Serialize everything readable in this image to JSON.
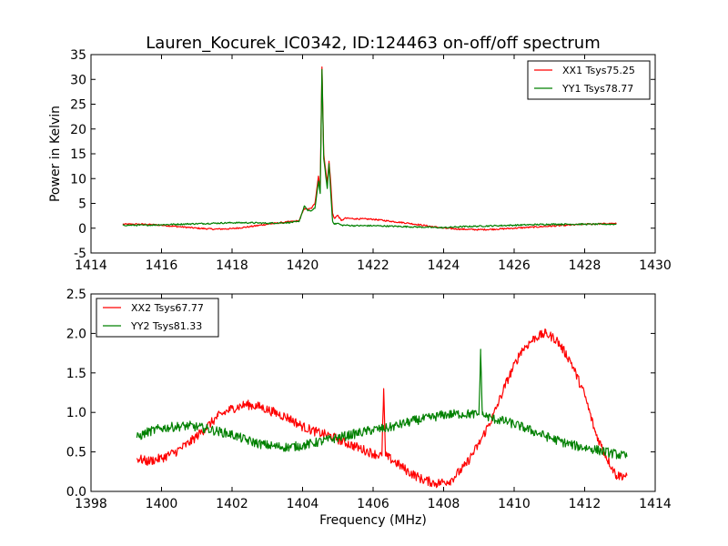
{
  "figure": {
    "title": "Lauren_Kocurek_IC0342, ID:124463 on-off/off spectrum"
  },
  "chart_data": [
    {
      "type": "line",
      "title": "Lauren_Kocurek_IC0342, ID:124463 on-off/off spectrum",
      "xlabel": "",
      "ylabel": "Power in Kelvin",
      "xlim": [
        1414,
        1430
      ],
      "ylim": [
        -5,
        35
      ],
      "xticks": [
        1414,
        1416,
        1418,
        1420,
        1422,
        1424,
        1426,
        1428,
        1430
      ],
      "yticks": [
        -5,
        0,
        5,
        10,
        15,
        20,
        25,
        30,
        35
      ],
      "grid": false,
      "legend_position": "top-right",
      "series": [
        {
          "name": "XX1 Tsys75.25",
          "color": "#ff0000",
          "x": [
            1414.9,
            1415.5,
            1416.0,
            1416.5,
            1417.0,
            1417.5,
            1418.0,
            1418.5,
            1419.0,
            1419.5,
            1419.9,
            1420.05,
            1420.15,
            1420.25,
            1420.35,
            1420.45,
            1420.5,
            1420.55,
            1420.6,
            1420.65,
            1420.7,
            1420.75,
            1420.8,
            1420.85,
            1420.9,
            1421.0,
            1421.1,
            1421.2,
            1421.5,
            1422.0,
            1422.5,
            1423.0,
            1423.5,
            1424.0,
            1424.5,
            1425.0,
            1425.5,
            1426.0,
            1426.5,
            1427.0,
            1427.5,
            1428.0,
            1428.5,
            1428.9
          ],
          "y": [
            0.8,
            0.8,
            0.6,
            0.3,
            0.0,
            -0.2,
            -0.1,
            0.3,
            0.8,
            1.2,
            1.5,
            4.0,
            3.8,
            4.0,
            5.0,
            10.5,
            8.0,
            32.5,
            15.0,
            12.0,
            9.0,
            13.5,
            9.0,
            3.0,
            2.0,
            2.6,
            1.5,
            2.0,
            1.9,
            1.8,
            1.4,
            1.0,
            0.5,
            0.0,
            -0.2,
            -0.3,
            -0.2,
            0.0,
            0.2,
            0.4,
            0.6,
            0.8,
            0.9,
            0.9
          ]
        },
        {
          "name": "YY1 Tsys78.77",
          "color": "#008000",
          "x": [
            1414.9,
            1415.5,
            1416.0,
            1416.5,
            1417.0,
            1417.5,
            1418.0,
            1418.5,
            1419.0,
            1419.5,
            1419.9,
            1420.05,
            1420.15,
            1420.25,
            1420.35,
            1420.45,
            1420.5,
            1420.55,
            1420.6,
            1420.65,
            1420.7,
            1420.75,
            1420.8,
            1420.85,
            1420.9,
            1421.0,
            1421.1,
            1421.2,
            1421.5,
            1422.0,
            1422.5,
            1423.0,
            1423.5,
            1424.0,
            1424.5,
            1425.0,
            1425.5,
            1426.0,
            1426.5,
            1427.0,
            1427.5,
            1428.0,
            1428.5,
            1428.9
          ],
          "y": [
            0.6,
            0.6,
            0.7,
            0.8,
            0.9,
            1.0,
            1.1,
            1.1,
            1.0,
            1.1,
            1.3,
            4.5,
            3.5,
            3.5,
            4.0,
            9.5,
            7.0,
            32.0,
            14.0,
            11.0,
            8.0,
            13.0,
            7.0,
            1.5,
            0.8,
            1.0,
            0.6,
            0.6,
            0.5,
            0.5,
            0.4,
            0.3,
            0.2,
            0.1,
            0.3,
            0.4,
            0.5,
            0.6,
            0.7,
            0.8,
            0.8,
            0.8,
            0.8,
            0.8
          ]
        }
      ]
    },
    {
      "type": "line",
      "title": "",
      "xlabel": "Frequency (MHz)",
      "ylabel": "",
      "xlim": [
        1398,
        1414
      ],
      "ylim": [
        0.0,
        2.5
      ],
      "xticks": [
        1398,
        1400,
        1402,
        1404,
        1406,
        1408,
        1410,
        1412,
        1414
      ],
      "yticks": [
        0.0,
        0.5,
        1.0,
        1.5,
        2.0,
        2.5
      ],
      "grid": false,
      "legend_position": "top-left",
      "series": [
        {
          "name": "XX2 Tsys67.77",
          "color": "#ff0000",
          "x": [
            1399.3,
            1399.6,
            1400.0,
            1400.4,
            1400.8,
            1401.2,
            1401.6,
            1402.0,
            1402.4,
            1402.8,
            1403.2,
            1403.6,
            1404.0,
            1404.4,
            1404.8,
            1405.2,
            1405.6,
            1406.0,
            1406.25,
            1406.3,
            1406.35,
            1406.6,
            1407.0,
            1407.4,
            1407.8,
            1408.2,
            1408.6,
            1409.0,
            1409.4,
            1409.8,
            1410.2,
            1410.6,
            1410.9,
            1411.2,
            1411.6,
            1412.0,
            1412.3,
            1412.6,
            1412.9,
            1413.2
          ],
          "y": [
            0.42,
            0.38,
            0.42,
            0.5,
            0.62,
            0.78,
            0.95,
            1.05,
            1.1,
            1.07,
            1.0,
            0.93,
            0.82,
            0.75,
            0.7,
            0.62,
            0.55,
            0.48,
            0.45,
            1.3,
            0.45,
            0.38,
            0.25,
            0.15,
            0.1,
            0.14,
            0.32,
            0.6,
            0.95,
            1.4,
            1.78,
            1.95,
            2.0,
            1.92,
            1.65,
            1.22,
            0.75,
            0.45,
            0.2,
            0.2
          ]
        },
        {
          "name": "YY2 Tsys81.33",
          "color": "#008000",
          "x": [
            1399.3,
            1399.6,
            1400.0,
            1400.4,
            1400.8,
            1401.2,
            1401.6,
            1402.0,
            1402.4,
            1402.8,
            1403.2,
            1403.6,
            1404.0,
            1404.4,
            1404.8,
            1405.2,
            1405.6,
            1406.0,
            1406.4,
            1406.8,
            1407.2,
            1407.6,
            1408.0,
            1408.4,
            1408.8,
            1409.0,
            1409.05,
            1409.1,
            1409.4,
            1409.8,
            1410.2,
            1410.6,
            1411.0,
            1411.4,
            1411.8,
            1412.2,
            1412.6,
            1412.9,
            1413.2
          ],
          "y": [
            0.68,
            0.75,
            0.8,
            0.82,
            0.83,
            0.8,
            0.76,
            0.72,
            0.65,
            0.6,
            0.57,
            0.56,
            0.58,
            0.62,
            0.66,
            0.7,
            0.74,
            0.78,
            0.8,
            0.85,
            0.9,
            0.93,
            0.97,
            0.98,
            0.98,
            0.97,
            1.75,
            0.97,
            0.92,
            0.88,
            0.82,
            0.75,
            0.68,
            0.62,
            0.57,
            0.54,
            0.5,
            0.47,
            0.44
          ]
        }
      ]
    }
  ]
}
